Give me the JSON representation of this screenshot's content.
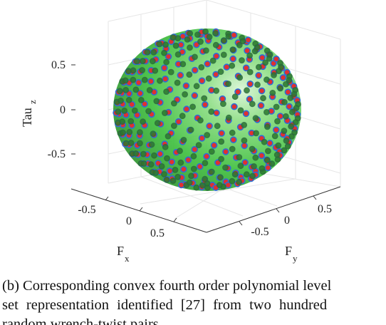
{
  "chart_data": {
    "type": "scatter3d",
    "surface": "convex fourth order polynomial level set (ellipsoid-like)",
    "surface_color": "#3fbf3f",
    "marker_colors": {
      "edge": "#2a6fd6",
      "face": "#e03030"
    },
    "axes": {
      "x": {
        "label": "F",
        "label_sub": "x",
        "ticks": [
          "-0.5",
          "0",
          "0.5"
        ]
      },
      "y": {
        "label": "F",
        "label_sub": "y",
        "ticks": [
          "-0.5",
          "0",
          "0.5"
        ]
      },
      "z": {
        "label": "Tau",
        "label_sub": "z",
        "ticks": [
          "0.5",
          "0",
          "-0.5"
        ]
      }
    },
    "grid": true
  },
  "caption": {
    "line1": "(b) Corresponding convex fourth order polynomial level",
    "line2": "set representation identified [27] from two hundred",
    "line3": "random wrench-twist pairs."
  }
}
